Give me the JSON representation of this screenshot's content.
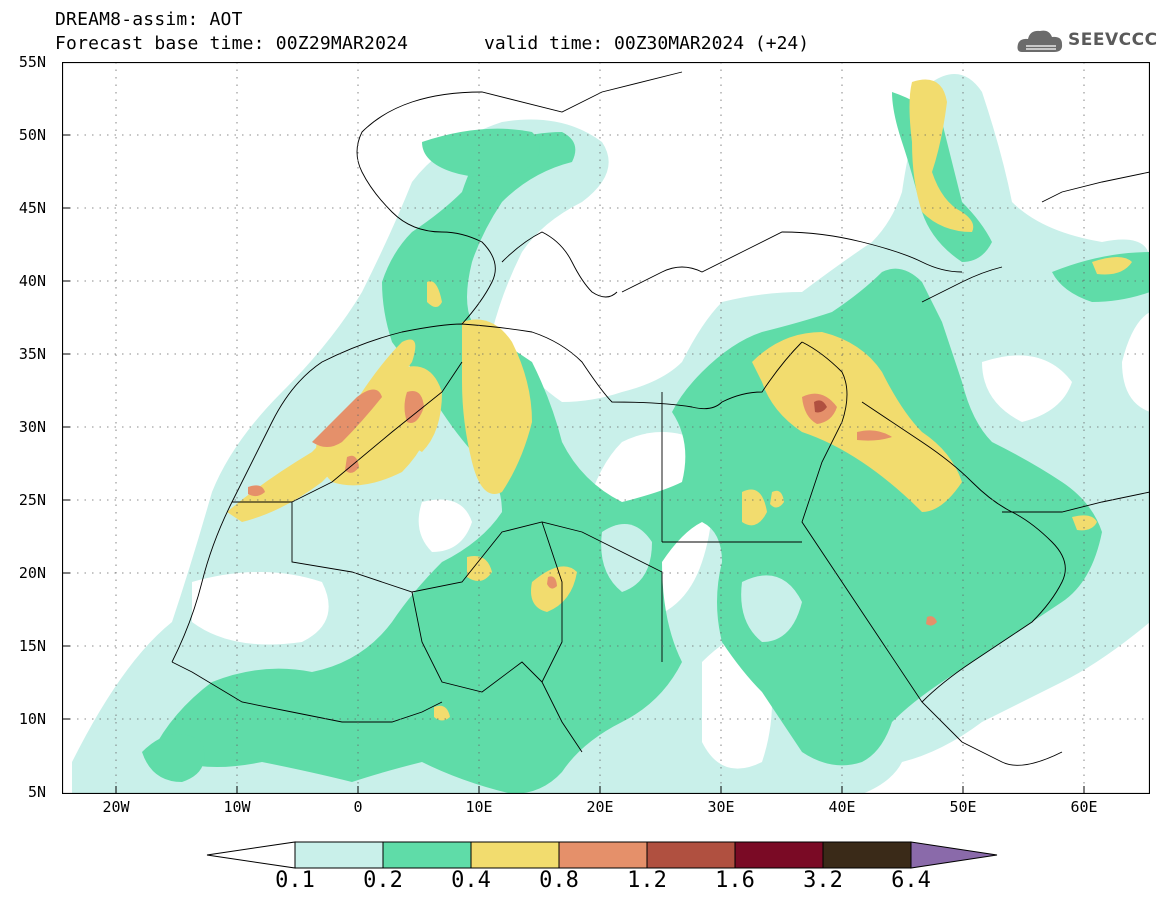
{
  "header": {
    "title": "DREAM8-assim: AOT",
    "base_time": "Forecast base time: 00Z29MAR2024",
    "valid_time": "valid time: 00Z30MAR2024 (+24)"
  },
  "logo": {
    "text": "SEEVCCC",
    "icon": "cloud-logo-icon"
  },
  "map": {
    "lat_labels": [
      "55N",
      "50N",
      "45N",
      "40N",
      "35N",
      "30N",
      "25N",
      "20N",
      "15N",
      "10N",
      "5N"
    ],
    "lon_labels": [
      "20W",
      "10W",
      "0",
      "10E",
      "20E",
      "30E",
      "40E",
      "50E",
      "60E"
    ],
    "lat_range": [
      5,
      55
    ],
    "lon_range": [
      -25,
      65
    ],
    "grid": "dotted"
  },
  "colorbar": {
    "labels": [
      "0.1",
      "0.2",
      "0.4",
      "0.8",
      "1.2",
      "1.6",
      "3.2",
      "6.4"
    ],
    "colors": [
      "#ffffff",
      "#c9f0ea",
      "#5fdca8",
      "#f2dc6e",
      "#e5906a",
      "#b05040",
      "#7a0a25",
      "#3a2a18",
      "#8a6aaa"
    ]
  },
  "colors": {
    "c1": "#c9f0ea",
    "c2": "#5fdca8",
    "c3": "#f2dc6e",
    "c4": "#e5906a",
    "c5": "#b05040"
  }
}
